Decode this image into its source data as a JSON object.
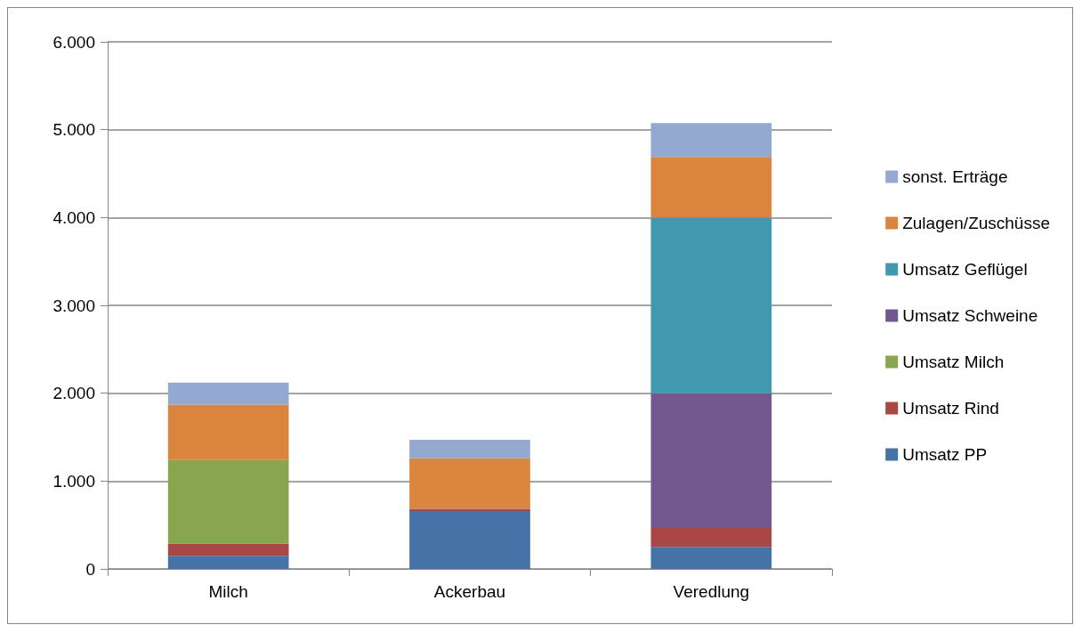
{
  "chart_data": {
    "type": "bar",
    "stacked": true,
    "categories": [
      "Milch",
      "Ackerbau",
      "Veredlung"
    ],
    "series": [
      {
        "name": "Umsatz PP",
        "color": "#4572a7",
        "values": [
          150,
          660,
          250
        ]
      },
      {
        "name": "Umsatz Rind",
        "color": "#aa4643",
        "values": [
          140,
          10,
          215
        ]
      },
      {
        "name": "Umsatz Milch",
        "color": "#89a54e",
        "values": [
          950,
          0,
          0
        ]
      },
      {
        "name": "Umsatz Schweine",
        "color": "#71588f",
        "values": [
          0,
          15,
          1535
        ]
      },
      {
        "name": "Umsatz Geflügel",
        "color": "#4198af",
        "values": [
          0,
          0,
          2000
        ]
      },
      {
        "name": "Zulagen/Zuschüsse",
        "color": "#db843d",
        "values": [
          630,
          575,
          690
        ]
      },
      {
        "name": "sonst. Erträge",
        "color": "#93a9cf",
        "values": [
          250,
          210,
          385
        ]
      }
    ],
    "ylim": [
      0,
      6000
    ],
    "yticks": [
      {
        "value": 0,
        "label": "0"
      },
      {
        "value": 1000,
        "label": "1.000"
      },
      {
        "value": 2000,
        "label": "2.000"
      },
      {
        "value": 3000,
        "label": "3.000"
      },
      {
        "value": 4000,
        "label": "4.000"
      },
      {
        "value": 5000,
        "label": "5.000"
      },
      {
        "value": 6000,
        "label": "6.000"
      }
    ],
    "grid": "y",
    "legend": "right"
  }
}
